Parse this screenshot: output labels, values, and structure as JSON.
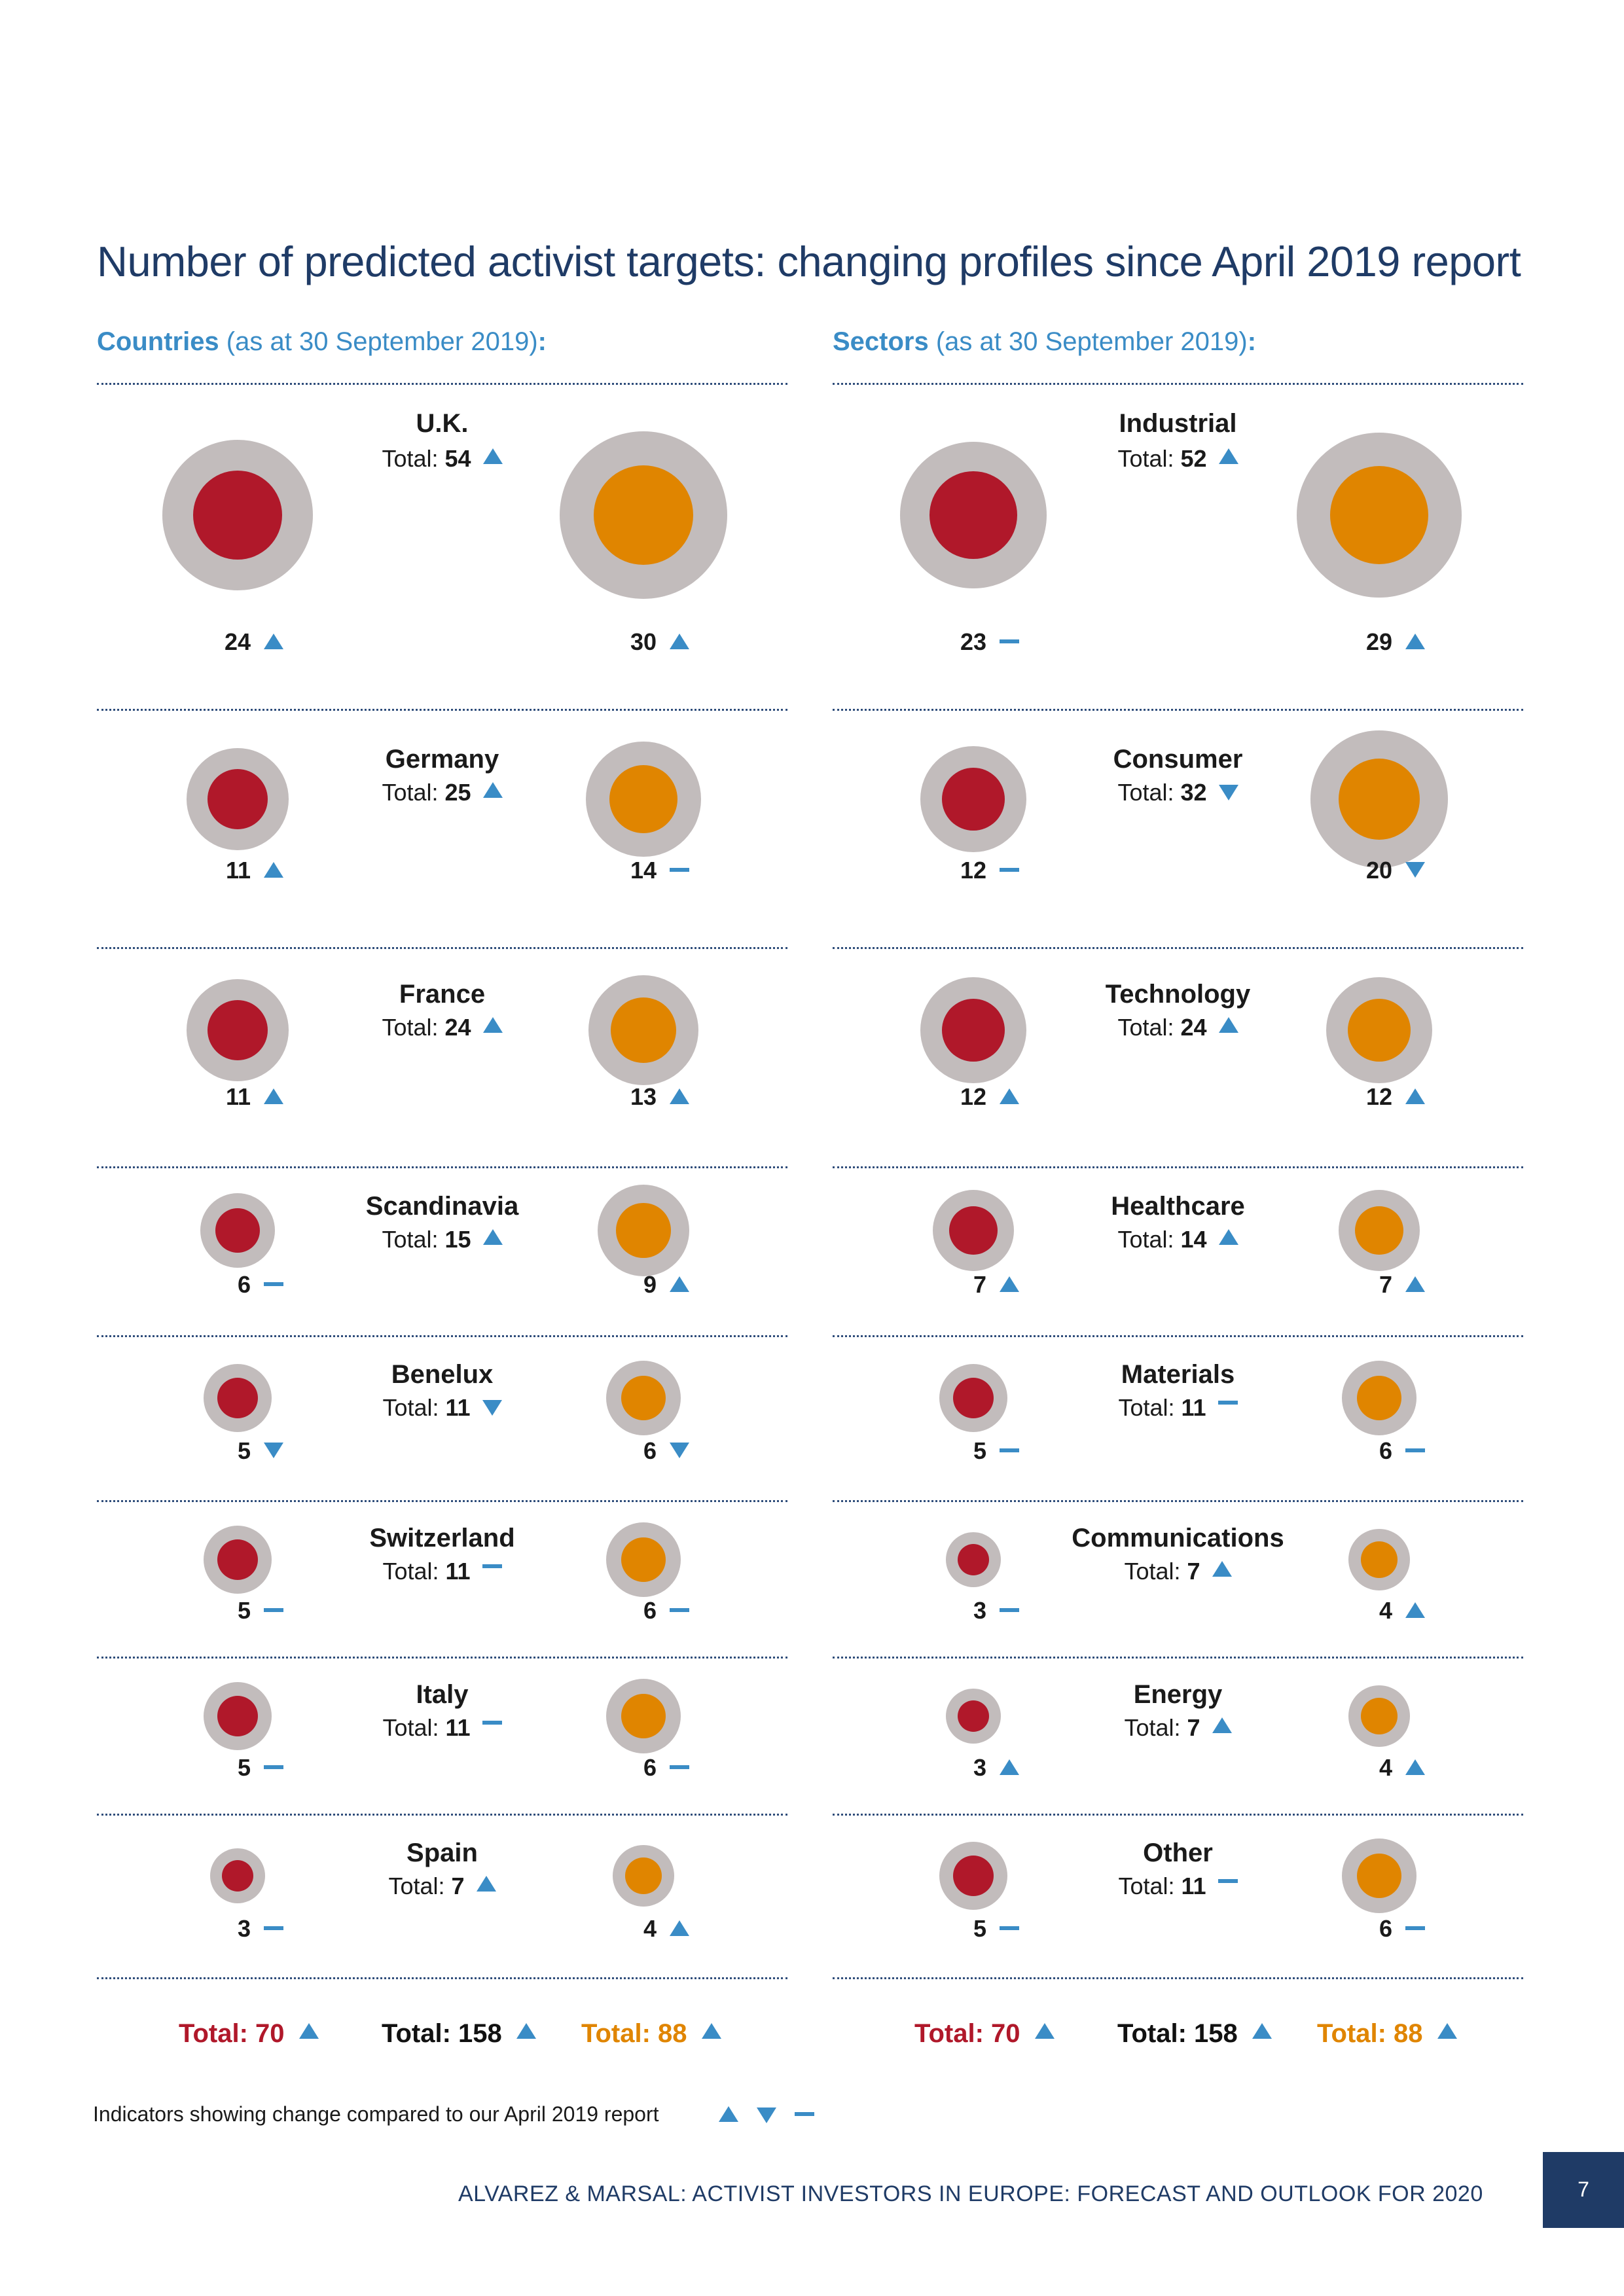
{
  "title": "Number of predicted activist targets: changing profiles since April 2019 report",
  "footer": "ALVAREZ & MARSAL: ACTIVIST INVESTORS IN EUROPE: FORECAST AND OUTLOOK FOR 2020",
  "page_number": "7",
  "legend_text": "Indicators showing change compared to our April 2019 report",
  "legend_indicators": [
    "up",
    "down",
    "same"
  ],
  "total_label": "Total:",
  "colors": {
    "red": "#b0182a",
    "orange": "#e08500",
    "grey": "#c2bcbc",
    "indicator": "#3a8cc6",
    "navy": "#1f3b66"
  },
  "chart_data": [
    {
      "type": "bubble",
      "heading_bold": "Countries",
      "heading_rest": " (as at 30 September 2019)",
      "heading_colon": ":",
      "rows": [
        {
          "name": "U.K.",
          "total": 54,
          "total_ind": "up",
          "red": 24,
          "red_ind": "up",
          "orange": 30,
          "orange_ind": "up"
        },
        {
          "name": "Germany",
          "total": 25,
          "total_ind": "up",
          "red": 11,
          "red_ind": "up",
          "orange": 14,
          "orange_ind": "same"
        },
        {
          "name": "France",
          "total": 24,
          "total_ind": "up",
          "red": 11,
          "red_ind": "up",
          "orange": 13,
          "orange_ind": "up"
        },
        {
          "name": "Scandinavia",
          "total": 15,
          "total_ind": "up",
          "red": 6,
          "red_ind": "same",
          "orange": 9,
          "orange_ind": "up"
        },
        {
          "name": "Benelux",
          "total": 11,
          "total_ind": "down",
          "red": 5,
          "red_ind": "down",
          "orange": 6,
          "orange_ind": "down"
        },
        {
          "name": "Switzerland",
          "total": 11,
          "total_ind": "same",
          "red": 5,
          "red_ind": "same",
          "orange": 6,
          "orange_ind": "same"
        },
        {
          "name": "Italy",
          "total": 11,
          "total_ind": "same",
          "red": 5,
          "red_ind": "same",
          "orange": 6,
          "orange_ind": "same"
        },
        {
          "name": "Spain",
          "total": 7,
          "total_ind": "up",
          "red": 3,
          "red_ind": "same",
          "orange": 4,
          "orange_ind": "up"
        }
      ],
      "grand_totals": {
        "red": 70,
        "red_ind": "up",
        "all": 158,
        "all_ind": "up",
        "orange": 88,
        "orange_ind": "up"
      }
    },
    {
      "type": "bubble",
      "heading_bold": "Sectors",
      "heading_rest": " (as at 30 September 2019)",
      "heading_colon": ":",
      "rows": [
        {
          "name": "Industrial",
          "total": 52,
          "total_ind": "up",
          "red": 23,
          "red_ind": "same",
          "orange": 29,
          "orange_ind": "up"
        },
        {
          "name": "Consumer",
          "total": 32,
          "total_ind": "down",
          "red": 12,
          "red_ind": "same",
          "orange": 20,
          "orange_ind": "down"
        },
        {
          "name": "Technology",
          "total": 24,
          "total_ind": "up",
          "red": 12,
          "red_ind": "up",
          "orange": 12,
          "orange_ind": "up"
        },
        {
          "name": "Healthcare",
          "total": 14,
          "total_ind": "up",
          "red": 7,
          "red_ind": "up",
          "orange": 7,
          "orange_ind": "up"
        },
        {
          "name": "Materials",
          "total": 11,
          "total_ind": "same",
          "red": 5,
          "red_ind": "same",
          "orange": 6,
          "orange_ind": "same"
        },
        {
          "name": "Communications",
          "total": 7,
          "total_ind": "up",
          "red": 3,
          "red_ind": "same",
          "orange": 4,
          "orange_ind": "up"
        },
        {
          "name": "Energy",
          "total": 7,
          "total_ind": "up",
          "red": 3,
          "red_ind": "up",
          "orange": 4,
          "orange_ind": "up"
        },
        {
          "name": "Other",
          "total": 11,
          "total_ind": "same",
          "red": 5,
          "red_ind": "same",
          "orange": 6,
          "orange_ind": "same"
        }
      ],
      "grand_totals": {
        "red": 70,
        "red_ind": "up",
        "all": 158,
        "all_ind": "up",
        "orange": 88,
        "orange_ind": "up"
      }
    }
  ]
}
